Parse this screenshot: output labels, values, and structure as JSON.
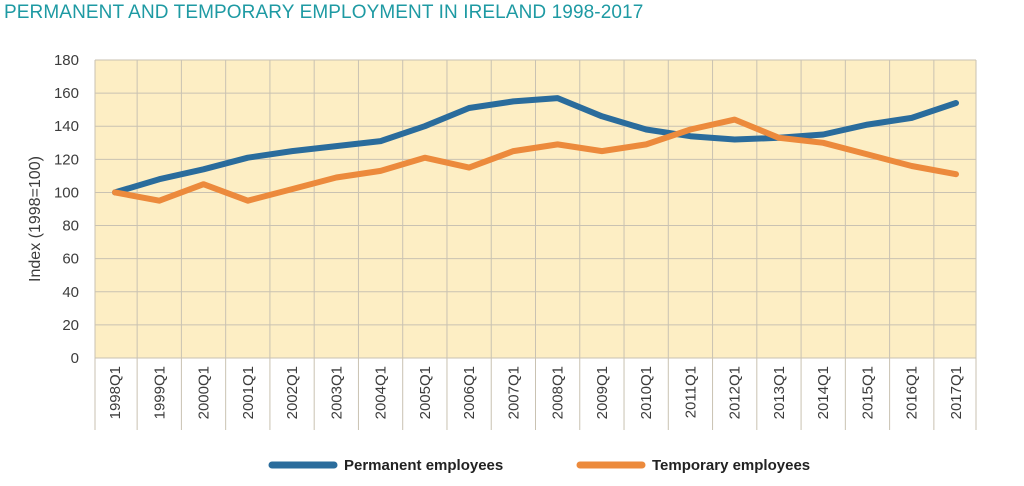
{
  "chart_data": {
    "type": "line",
    "title": "PERMANENT AND TEMPORARY EMPLOYMENT IN IRELAND 1998-2017",
    "ylabel": "Index (1998=100)",
    "xlabel": "",
    "ylim": [
      0,
      180
    ],
    "yticks": [
      0,
      20,
      40,
      60,
      80,
      100,
      120,
      140,
      160,
      180
    ],
    "grid": true,
    "legend_position": "bottom",
    "x": [
      "1998Q1",
      "1999Q1",
      "2000Q1",
      "2001Q1",
      "2002Q1",
      "2003Q1",
      "2004Q1",
      "2005Q1",
      "2006Q1",
      "2007Q1",
      "2008Q1",
      "2009Q1",
      "2010Q1",
      "2011Q1",
      "2012Q1",
      "2013Q1",
      "2014Q1",
      "2015Q1",
      "2016Q1",
      "2017Q1"
    ],
    "series": [
      {
        "name": "Permanent employees",
        "color": "#2a6c9c",
        "values": [
          100,
          108,
          114,
          121,
          125,
          128,
          131,
          140,
          151,
          155,
          157,
          146,
          138,
          134,
          132,
          133,
          135,
          141,
          145,
          154
        ]
      },
      {
        "name": "Temporary employees",
        "color": "#ec8a3c",
        "values": [
          100,
          95,
          105,
          95,
          102,
          109,
          113,
          121,
          115,
          125,
          129,
          125,
          129,
          138,
          144,
          133,
          130,
          123,
          116,
          111
        ]
      }
    ]
  },
  "style": {
    "plot_background": "#fdeec4",
    "grid_color": "#c9c2b2",
    "title_color": "#1e9aa3"
  }
}
